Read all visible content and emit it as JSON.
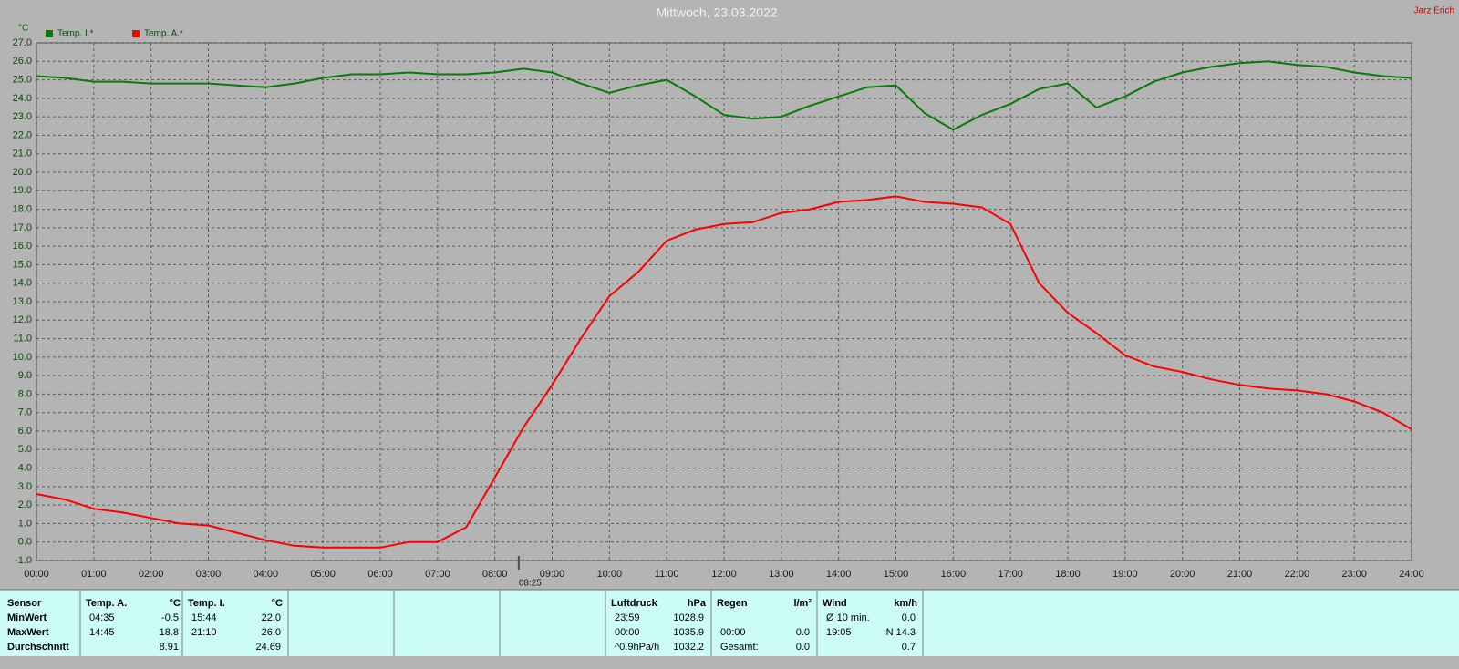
{
  "chart_data": {
    "type": "line",
    "title": "Mittwoch, 23.03.2022",
    "author": "Jarz Erich",
    "y_unit": "°C",
    "x": [
      0,
      0.5,
      1,
      1.5,
      2,
      2.5,
      3,
      3.5,
      4,
      4.5,
      5,
      5.5,
      6,
      6.5,
      7,
      7.5,
      8,
      8.5,
      9,
      9.5,
      10,
      10.5,
      11,
      11.5,
      12,
      12.5,
      13,
      13.5,
      14,
      14.5,
      15,
      15.5,
      16,
      16.5,
      17,
      17.5,
      18,
      18.5,
      19,
      19.5,
      20,
      20.5,
      21,
      21.5,
      22,
      22.5,
      23,
      23.5,
      24
    ],
    "series": [
      {
        "name": "Temp. I.*",
        "color": "#0a7a0a",
        "values": [
          25.2,
          25.1,
          24.9,
          24.9,
          24.8,
          24.8,
          24.8,
          24.7,
          24.6,
          24.8,
          25.1,
          25.3,
          25.3,
          25.4,
          25.3,
          25.3,
          25.4,
          25.6,
          25.4,
          24.8,
          24.3,
          24.7,
          25.0,
          24.1,
          23.1,
          22.9,
          23.0,
          23.6,
          24.1,
          24.6,
          24.7,
          23.2,
          22.3,
          23.1,
          23.7,
          24.5,
          24.8,
          23.5,
          24.1,
          24.9,
          25.4,
          25.7,
          25.9,
          26.0,
          25.8,
          25.7,
          25.4,
          25.2,
          25.1
        ]
      },
      {
        "name": "Temp. A.*",
        "color": "#ff0000",
        "values": [
          2.6,
          2.3,
          1.8,
          1.6,
          1.3,
          1.0,
          0.9,
          0.5,
          0.1,
          -0.2,
          -0.3,
          -0.3,
          -0.3,
          0.0,
          0.0,
          0.8,
          3.5,
          6.2,
          8.5,
          11.0,
          13.3,
          14.6,
          16.3,
          16.9,
          17.2,
          17.3,
          17.8,
          18.0,
          18.4,
          18.5,
          18.7,
          18.4,
          18.3,
          18.1,
          17.2,
          14.0,
          12.4,
          11.3,
          10.1,
          9.5,
          9.2,
          8.8,
          8.5,
          8.3,
          8.2,
          8.0,
          7.6,
          7.0,
          6.1
        ]
      }
    ],
    "xlim": [
      0,
      24
    ],
    "xticks": [
      {
        "value": 0,
        "label": "00:00"
      },
      {
        "value": 1,
        "label": "01:00"
      },
      {
        "value": 2,
        "label": "02:00"
      },
      {
        "value": 3,
        "label": "03:00"
      },
      {
        "value": 4,
        "label": "04:00"
      },
      {
        "value": 5,
        "label": "05:00"
      },
      {
        "value": 6,
        "label": "06:00"
      },
      {
        "value": 7,
        "label": "07:00"
      },
      {
        "value": 8,
        "label": "08:00"
      },
      {
        "value": 9,
        "label": "09:00"
      },
      {
        "value": 10,
        "label": "10:00"
      },
      {
        "value": 11,
        "label": "11:00"
      },
      {
        "value": 12,
        "label": "12:00"
      },
      {
        "value": 13,
        "label": "13:00"
      },
      {
        "value": 14,
        "label": "14:00"
      },
      {
        "value": 15,
        "label": "15:00"
      },
      {
        "value": 16,
        "label": "16:00"
      },
      {
        "value": 17,
        "label": "17:00"
      },
      {
        "value": 18,
        "label": "18:00"
      },
      {
        "value": 19,
        "label": "19:00"
      },
      {
        "value": 20,
        "label": "20:00"
      },
      {
        "value": 21,
        "label": "21:00"
      },
      {
        "value": 22,
        "label": "22:00"
      },
      {
        "value": 23,
        "label": "23:00"
      },
      {
        "value": 24,
        "label": "24:00"
      }
    ],
    "ylim": [
      -1,
      27
    ],
    "yticks": [
      {
        "value": -1,
        "label": "-1.0"
      },
      {
        "value": 0,
        "label": "0.0"
      },
      {
        "value": 1,
        "label": "1.0"
      },
      {
        "value": 2,
        "label": "2.0"
      },
      {
        "value": 3,
        "label": "3.0"
      },
      {
        "value": 4,
        "label": "4.0"
      },
      {
        "value": 5,
        "label": "5.0"
      },
      {
        "value": 6,
        "label": "6.0"
      },
      {
        "value": 7,
        "label": "7.0"
      },
      {
        "value": 8,
        "label": "8.0"
      },
      {
        "value": 9,
        "label": "9.0"
      },
      {
        "value": 10,
        "label": "10.0"
      },
      {
        "value": 11,
        "label": "11.0"
      },
      {
        "value": 12,
        "label": "12.0"
      },
      {
        "value": 13,
        "label": "13.0"
      },
      {
        "value": 14,
        "label": "14.0"
      },
      {
        "value": 15,
        "label": "15.0"
      },
      {
        "value": 16,
        "label": "16.0"
      },
      {
        "value": 17,
        "label": "17.0"
      },
      {
        "value": 18,
        "label": "18.0"
      },
      {
        "value": 19,
        "label": "19.0"
      },
      {
        "value": 20,
        "label": "20.0"
      },
      {
        "value": 21,
        "label": "21.0"
      },
      {
        "value": 22,
        "label": "22.0"
      },
      {
        "value": 23,
        "label": "23.0"
      },
      {
        "value": 24,
        "label": "24.0"
      },
      {
        "value": 25,
        "label": "25.0"
      },
      {
        "value": 26,
        "label": "26.0"
      },
      {
        "value": 27,
        "label": "27.0"
      }
    ],
    "grid": true,
    "legend": "top-left",
    "marker": {
      "x": 8.4167,
      "label": "08:25"
    }
  },
  "stats_table": {
    "row_labels": [
      "Sensor",
      "MinWert",
      "MaxWert",
      "Durchschnitt"
    ],
    "panels": [
      {
        "header": [
          "Temp. A.",
          "°C"
        ],
        "rows": [
          [
            "04:35",
            "-0.5"
          ],
          [
            "14:45",
            "18.8"
          ],
          [
            null,
            "8.91"
          ]
        ]
      },
      {
        "header": [
          "Temp. I.",
          "°C"
        ],
        "rows": [
          [
            "15:44",
            "22.0"
          ],
          [
            "21:10",
            "26.0"
          ],
          [
            null,
            "24.69"
          ]
        ]
      },
      {
        "header": null,
        "rows": []
      },
      {
        "header": null,
        "rows": []
      },
      {
        "header": null,
        "rows": []
      },
      {
        "header": [
          "Luftdruck",
          "hPa"
        ],
        "rows": [
          [
            "23:59",
            "1028.9"
          ],
          [
            "00:00",
            "1035.9"
          ],
          [
            "^0.9hPa/h",
            "1032.2"
          ]
        ]
      },
      {
        "header": [
          "Regen",
          "l/m²"
        ],
        "rows": [
          [
            null,
            null
          ],
          [
            "00:00",
            "0.0"
          ],
          [
            "Gesamt:",
            "0.0"
          ]
        ]
      },
      {
        "header": [
          "Wind",
          "km/h"
        ],
        "rows": [
          [
            "Ø 10 min.",
            "0.0"
          ],
          [
            "19:05",
            "N 14.3"
          ],
          [
            null,
            "0.7"
          ]
        ]
      }
    ]
  }
}
